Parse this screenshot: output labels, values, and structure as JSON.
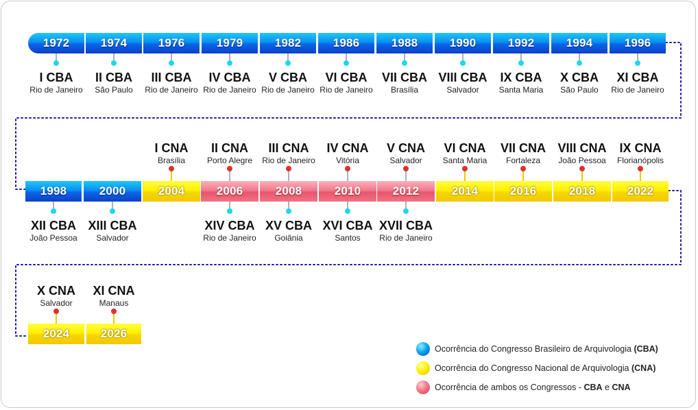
{
  "timeline": [
    {
      "year": "1972",
      "type": "cba",
      "events": [
        {
          "pos": "below",
          "title": "I CBA",
          "city": "Rio de Janeiro"
        }
      ]
    },
    {
      "year": "1974",
      "type": "cba",
      "events": [
        {
          "pos": "below",
          "title": "II CBA",
          "city": "São Paulo"
        }
      ]
    },
    {
      "year": "1976",
      "type": "cba",
      "events": [
        {
          "pos": "below",
          "title": "III CBA",
          "city": "Rio de Janeiro"
        }
      ]
    },
    {
      "year": "1979",
      "type": "cba",
      "events": [
        {
          "pos": "below",
          "title": "IV CBA",
          "city": "Rio de Janeiro"
        }
      ]
    },
    {
      "year": "1982",
      "type": "cba",
      "events": [
        {
          "pos": "below",
          "title": "V CBA",
          "city": "Rio de Janeiro"
        }
      ]
    },
    {
      "year": "1986",
      "type": "cba",
      "events": [
        {
          "pos": "below",
          "title": "VI CBA",
          "city": "Rio de Janeiro"
        }
      ]
    },
    {
      "year": "1988",
      "type": "cba",
      "events": [
        {
          "pos": "below",
          "title": "VII CBA",
          "city": "Brasília"
        }
      ]
    },
    {
      "year": "1990",
      "type": "cba",
      "events": [
        {
          "pos": "below",
          "title": "VIII CBA",
          "city": "Salvador"
        }
      ]
    },
    {
      "year": "1992",
      "type": "cba",
      "events": [
        {
          "pos": "below",
          "title": "IX CBA",
          "city": "Santa Maria"
        }
      ]
    },
    {
      "year": "1994",
      "type": "cba",
      "events": [
        {
          "pos": "below",
          "title": "X CBA",
          "city": "São Paulo"
        }
      ]
    },
    {
      "year": "1996",
      "type": "cba",
      "events": [
        {
          "pos": "below",
          "title": "XI CBA",
          "city": "Rio de Janeiro"
        }
      ]
    },
    {
      "year": "1998",
      "type": "cba",
      "events": [
        {
          "pos": "below",
          "title": "XII CBA",
          "city": "João Pessoa"
        }
      ]
    },
    {
      "year": "2000",
      "type": "cba",
      "events": [
        {
          "pos": "below",
          "title": "XIII CBA",
          "city": "Salvador"
        }
      ]
    },
    {
      "year": "2004",
      "type": "cna",
      "events": [
        {
          "pos": "above",
          "title": "I CNA",
          "city": "Brasília"
        }
      ]
    },
    {
      "year": "2006",
      "type": "both",
      "events": [
        {
          "pos": "above",
          "title": "II CNA",
          "city": "Porto Alegre"
        },
        {
          "pos": "below",
          "title": "XIV CBA",
          "city": "Rio de Janeiro"
        }
      ]
    },
    {
      "year": "2008",
      "type": "both",
      "events": [
        {
          "pos": "above",
          "title": "III CNA",
          "city": "Rio de Janeiro"
        },
        {
          "pos": "below",
          "title": "XV CBA",
          "city": "Goiânia"
        }
      ]
    },
    {
      "year": "2010",
      "type": "both",
      "events": [
        {
          "pos": "above",
          "title": "IV CNA",
          "city": "Vitória"
        },
        {
          "pos": "below",
          "title": "XVI CBA",
          "city": "Santos"
        }
      ]
    },
    {
      "year": "2012",
      "type": "both",
      "events": [
        {
          "pos": "above",
          "title": "V CNA",
          "city": "Salvador"
        },
        {
          "pos": "below",
          "title": "XVII CBA",
          "city": "Rio de Janeiro"
        }
      ]
    },
    {
      "year": "2014",
      "type": "cna",
      "events": [
        {
          "pos": "above",
          "title": "VI CNA",
          "city": "Santa Maria"
        }
      ]
    },
    {
      "year": "2016",
      "type": "cna",
      "events": [
        {
          "pos": "above",
          "title": "VII CNA",
          "city": "Fortaleza"
        }
      ]
    },
    {
      "year": "2018",
      "type": "cna",
      "events": [
        {
          "pos": "above",
          "title": "VIII CNA",
          "city": "João Pessoa"
        }
      ]
    },
    {
      "year": "2022",
      "type": "cna",
      "events": [
        {
          "pos": "above",
          "title": "IX CNA",
          "city": "Florianópolis"
        }
      ]
    },
    {
      "year": "2024",
      "type": "cna",
      "events": [
        {
          "pos": "above",
          "title": "X CNA",
          "city": "Salvador"
        }
      ]
    },
    {
      "year": "2026",
      "type": "cna",
      "events": [
        {
          "pos": "above",
          "title": "XI CNA",
          "city": "Manaus"
        }
      ]
    }
  ],
  "legend": [
    {
      "type": "cba",
      "text": "Ocorrência do Congresso Brasileiro de Arquivologia ",
      "bold": "(CBA)",
      "mid": "",
      "bold2": ""
    },
    {
      "type": "cna",
      "text": "Ocorrência do Congresso Nacional de Arquivologia ",
      "bold": "(CNA)",
      "mid": "",
      "bold2": ""
    },
    {
      "type": "both",
      "text": "Ocorrência de ambos os Congressos - ",
      "bold": "CBA",
      "mid": " e ",
      "bold2": "CNA"
    }
  ],
  "colors": {
    "cba": "#0a8ff0",
    "cna": "#fff000",
    "both": "#f27a8c",
    "connector": "#1a1aa8",
    "dot_cba": "#1ad8f2",
    "dot_cna": "#e0302c"
  }
}
